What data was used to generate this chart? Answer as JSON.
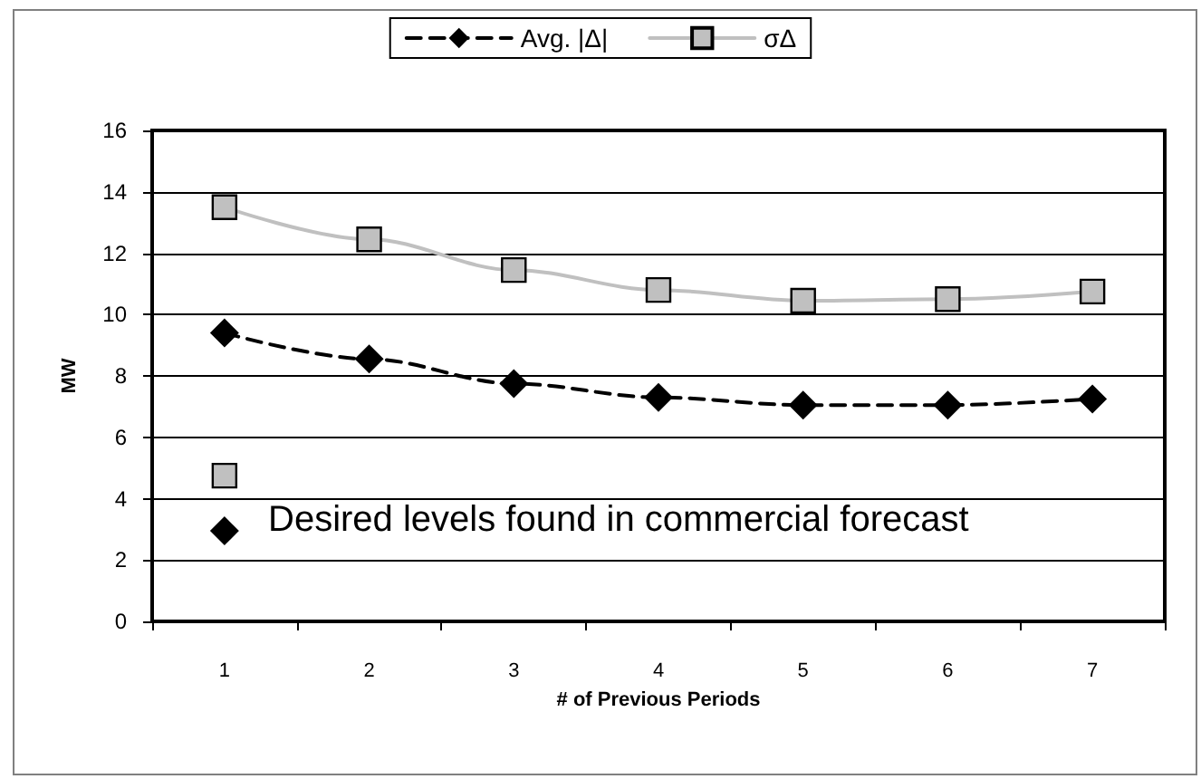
{
  "chart_data": {
    "type": "line",
    "xlabel": "# of Previous Periods",
    "ylabel": "MW",
    "categories": [
      "1",
      "2",
      "3",
      "4",
      "5",
      "6",
      "7"
    ],
    "series": [
      {
        "name": "Avg. |Δ|",
        "color": "#000000",
        "marker": "diamond",
        "line_style": "dashed",
        "values": [
          9.4,
          8.55,
          7.75,
          7.3,
          7.05,
          7.05,
          7.25
        ]
      },
      {
        "name": "σΔ",
        "color": "#c0c0c0",
        "marker": "square",
        "line_style": "solid",
        "values": [
          13.5,
          12.45,
          11.45,
          10.8,
          10.45,
          10.5,
          10.75
        ]
      },
      {
        "type": "scatter",
        "color": "#c0c0c0",
        "marker": "square",
        "x": [
          "1"
        ],
        "values": [
          4.75
        ]
      },
      {
        "type": "scatter",
        "color": "#000000",
        "marker": "diamond",
        "x": [
          "1"
        ],
        "values": [
          2.95
        ]
      }
    ],
    "annotations": [
      "Desired levels found in commercial forecast"
    ],
    "ylim": [
      0,
      16
    ],
    "yticks": [
      0,
      2,
      4,
      6,
      8,
      10,
      12,
      14,
      16
    ],
    "grid": "y",
    "legend": "top"
  }
}
